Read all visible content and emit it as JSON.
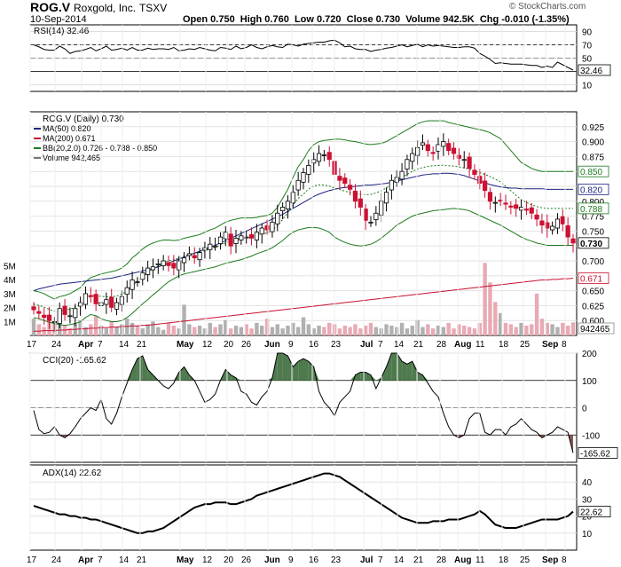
{
  "header": {
    "symbol": "ROG.V",
    "company": "Roxgold, Inc.",
    "exchange": "TSXV",
    "date": "10-Sep-2014",
    "quote": "Open 0.750  High 0.760  Low 0.720  Close 0.730  Volume 942.5K  Chg -0.010 (-1.35%)",
    "watermark": "© StockCharts.com"
  },
  "colors": {
    "up": "#000000",
    "down": "#cc1133",
    "ma50": "#1a237e",
    "ma200": "#c8102e",
    "bb": "#1b7a1b",
    "cci_fill": "#4e7a4e",
    "cci_fill_neg": "#8a5a54",
    "vol_up": "#b0b0b0",
    "vol_down": "#e8aab4"
  },
  "x_labels": [
    "17",
    "24",
    "Apr",
    "7",
    "14",
    "21",
    "May",
    "12",
    "20",
    "26",
    "Jun",
    "9",
    "16",
    "23",
    "Jul",
    "7",
    "14",
    "21",
    "28",
    "Aug",
    "11",
    "18",
    "25",
    "Sep",
    "8"
  ],
  "chart_data": [
    {
      "type": "line",
      "title": "RSI(14) 32.46",
      "ylim": [
        0,
        100
      ],
      "y_ticks": [
        10,
        30,
        50,
        70,
        90
      ],
      "last_label": "32.46",
      "values": [
        70,
        67,
        63,
        62,
        62,
        68,
        64,
        57,
        60,
        61,
        63,
        66,
        61,
        64,
        68,
        62,
        63,
        65,
        62,
        66,
        62,
        62,
        65,
        63,
        64,
        64,
        63,
        66,
        61,
        62,
        64,
        63,
        66,
        64,
        62,
        61,
        66,
        65,
        63,
        68,
        64,
        66,
        70,
        66,
        64,
        67,
        69,
        67,
        66,
        71,
        70,
        68,
        71,
        72,
        73,
        74,
        74,
        76,
        77,
        73,
        67,
        68,
        64,
        63,
        63,
        60,
        62,
        63,
        65,
        66,
        68,
        70,
        67,
        69,
        71,
        67,
        70,
        68,
        69,
        68,
        67,
        66,
        66,
        67,
        67,
        65,
        57,
        53,
        48,
        42,
        43,
        42,
        41,
        41,
        41,
        40,
        39,
        39,
        36,
        38,
        36,
        44,
        40,
        36,
        32
      ]
    },
    {
      "type": "candlestick",
      "title": "ROG.V (Daily) 0.730",
      "legend": [
        "MA(50) 0.820",
        "MA(200) 0.671",
        "BB(20,2.0) 0.726 - 0.788 - 0.850",
        "Volume 942,465"
      ],
      "ylim": [
        0.575,
        0.95
      ],
      "price_ticks": [
        0.6,
        0.625,
        0.65,
        0.675,
        0.7,
        0.725,
        0.75,
        0.775,
        0.8,
        0.825,
        0.85,
        0.875,
        0.9,
        0.925
      ],
      "price_tick_labels": [
        "0.600",
        "0.625",
        "0.650",
        "",
        "0.700",
        "",
        "0.750",
        "0.775",
        "0.800",
        "",
        "0.850",
        "0.875",
        "0.900",
        "0.925"
      ],
      "volume_ticks": [
        "1M",
        "2M",
        "3M",
        "4M",
        "5M"
      ],
      "price_flags": [
        {
          "value": 0.85,
          "label": "0.850",
          "color": "#1b7a1b"
        },
        {
          "value": 0.82,
          "label": "0.820",
          "color": "#1a237e"
        },
        {
          "value": 0.788,
          "label": "0.788",
          "color": "#1b7a1b"
        },
        {
          "value": 0.73,
          "label": "0.730",
          "color": "#000000"
        },
        {
          "value": 0.671,
          "label": "0.671",
          "color": "#c8102e"
        }
      ],
      "volume_flag": "942465",
      "close": [
        0.618,
        0.612,
        0.605,
        0.6,
        0.598,
        0.62,
        0.61,
        0.608,
        0.62,
        0.63,
        0.645,
        0.64,
        0.628,
        0.63,
        0.635,
        0.622,
        0.63,
        0.64,
        0.655,
        0.668,
        0.665,
        0.68,
        0.688,
        0.69,
        0.695,
        0.7,
        0.692,
        0.688,
        0.7,
        0.705,
        0.712,
        0.705,
        0.714,
        0.722,
        0.728,
        0.725,
        0.74,
        0.748,
        0.725,
        0.738,
        0.742,
        0.74,
        0.738,
        0.748,
        0.755,
        0.752,
        0.765,
        0.78,
        0.79,
        0.8,
        0.815,
        0.835,
        0.848,
        0.86,
        0.87,
        0.88,
        0.878,
        0.87,
        0.845,
        0.835,
        0.83,
        0.82,
        0.8,
        0.79,
        0.768,
        0.765,
        0.78,
        0.8,
        0.815,
        0.835,
        0.84,
        0.85,
        0.87,
        0.88,
        0.89,
        0.898,
        0.885,
        0.88,
        0.895,
        0.9,
        0.885,
        0.88,
        0.872,
        0.87,
        0.855,
        0.845,
        0.83,
        0.818,
        0.8,
        0.798,
        0.8,
        0.795,
        0.79,
        0.788,
        0.79,
        0.785,
        0.78,
        0.77,
        0.76,
        0.755,
        0.758,
        0.77,
        0.762,
        0.74,
        0.73
      ],
      "ma50": [
        0.65,
        0.653,
        0.655,
        0.657,
        0.659,
        0.661,
        0.662,
        0.663,
        0.664,
        0.665,
        0.666,
        0.667,
        0.668,
        0.669,
        0.67,
        0.671,
        0.673,
        0.675,
        0.677,
        0.679,
        0.681,
        0.683,
        0.685,
        0.687,
        0.69,
        0.693,
        0.696,
        0.7,
        0.703,
        0.706,
        0.71,
        0.713,
        0.716,
        0.72,
        0.723,
        0.726,
        0.73,
        0.734,
        0.738,
        0.742,
        0.746,
        0.75,
        0.754,
        0.758,
        0.762,
        0.766,
        0.77,
        0.774,
        0.778,
        0.783,
        0.788,
        0.793,
        0.798,
        0.803,
        0.808,
        0.812,
        0.815,
        0.818,
        0.82,
        0.822,
        0.823,
        0.824,
        0.825,
        0.826,
        0.827,
        0.827,
        0.828,
        0.829,
        0.83,
        0.832,
        0.834,
        0.836,
        0.838,
        0.84,
        0.842,
        0.844,
        0.845,
        0.846,
        0.846,
        0.847,
        0.847,
        0.846,
        0.845,
        0.843,
        0.84,
        0.837,
        0.834,
        0.831,
        0.828,
        0.826,
        0.824,
        0.823,
        0.822,
        0.822,
        0.821,
        0.821,
        0.821,
        0.821,
        0.821,
        0.82,
        0.82,
        0.82,
        0.82,
        0.82,
        0.82
      ],
      "ma200": [
        0.582,
        0.582,
        0.583,
        0.583,
        0.583,
        0.584,
        0.584,
        0.585,
        0.585,
        0.586,
        0.586,
        0.587,
        0.587,
        0.588,
        0.588,
        0.589,
        0.589,
        0.59,
        0.59,
        0.591,
        0.591,
        0.592,
        0.592,
        0.593,
        0.594,
        0.595,
        0.596,
        0.597,
        0.598,
        0.599,
        0.6,
        0.601,
        0.602,
        0.603,
        0.604,
        0.605,
        0.606,
        0.607,
        0.608,
        0.609,
        0.61,
        0.611,
        0.612,
        0.613,
        0.614,
        0.615,
        0.616,
        0.617,
        0.618,
        0.619,
        0.62,
        0.621,
        0.622,
        0.623,
        0.624,
        0.625,
        0.626,
        0.627,
        0.628,
        0.629,
        0.63,
        0.631,
        0.632,
        0.633,
        0.634,
        0.635,
        0.636,
        0.637,
        0.638,
        0.639,
        0.64,
        0.641,
        0.642,
        0.643,
        0.644,
        0.645,
        0.646,
        0.647,
        0.648,
        0.649,
        0.65,
        0.651,
        0.652,
        0.653,
        0.654,
        0.655,
        0.656,
        0.657,
        0.658,
        0.659,
        0.66,
        0.661,
        0.662,
        0.663,
        0.664,
        0.665,
        0.666,
        0.667,
        0.668,
        0.668,
        0.669,
        0.669,
        0.67,
        0.67,
        0.671
      ],
      "bb_upper": [
        0.65,
        0.648,
        0.645,
        0.64,
        0.636,
        0.64,
        0.642,
        0.645,
        0.65,
        0.655,
        0.665,
        0.672,
        0.675,
        0.678,
        0.68,
        0.682,
        0.684,
        0.688,
        0.695,
        0.705,
        0.712,
        0.72,
        0.726,
        0.73,
        0.733,
        0.735,
        0.735,
        0.734,
        0.735,
        0.738,
        0.74,
        0.742,
        0.744,
        0.748,
        0.752,
        0.755,
        0.76,
        0.765,
        0.768,
        0.77,
        0.772,
        0.772,
        0.772,
        0.773,
        0.775,
        0.776,
        0.78,
        0.79,
        0.805,
        0.82,
        0.84,
        0.858,
        0.87,
        0.885,
        0.895,
        0.9,
        0.902,
        0.903,
        0.904,
        0.904,
        0.903,
        0.901,
        0.9,
        0.898,
        0.896,
        0.895,
        0.896,
        0.897,
        0.9,
        0.905,
        0.91,
        0.915,
        0.92,
        0.925,
        0.93,
        0.933,
        0.935,
        0.935,
        0.935,
        0.935,
        0.932,
        0.93,
        0.928,
        0.926,
        0.924,
        0.922,
        0.92,
        0.918,
        0.915,
        0.91,
        0.905,
        0.895,
        0.885,
        0.875,
        0.865,
        0.86,
        0.855,
        0.852,
        0.85,
        0.85,
        0.85,
        0.85,
        0.85,
        0.85,
        0.85
      ],
      "bb_lower": [
        0.605,
        0.603,
        0.6,
        0.597,
        0.595,
        0.593,
        0.592,
        0.593,
        0.595,
        0.598,
        0.605,
        0.61,
        0.608,
        0.603,
        0.6,
        0.598,
        0.598,
        0.6,
        0.605,
        0.612,
        0.62,
        0.628,
        0.635,
        0.643,
        0.65,
        0.658,
        0.665,
        0.67,
        0.675,
        0.678,
        0.68,
        0.682,
        0.684,
        0.686,
        0.688,
        0.69,
        0.693,
        0.696,
        0.698,
        0.7,
        0.702,
        0.705,
        0.708,
        0.712,
        0.715,
        0.718,
        0.722,
        0.728,
        0.734,
        0.742,
        0.748,
        0.752,
        0.754,
        0.756,
        0.756,
        0.755,
        0.752,
        0.748,
        0.74,
        0.735,
        0.731,
        0.728,
        0.726,
        0.725,
        0.726,
        0.728,
        0.732,
        0.738,
        0.745,
        0.752,
        0.76,
        0.765,
        0.77,
        0.775,
        0.778,
        0.78,
        0.782,
        0.784,
        0.785,
        0.786,
        0.787,
        0.788,
        0.787,
        0.786,
        0.784,
        0.78,
        0.776,
        0.772,
        0.768,
        0.764,
        0.76,
        0.755,
        0.75,
        0.745,
        0.74,
        0.736,
        0.733,
        0.73,
        0.728,
        0.726,
        0.726,
        0.726,
        0.726,
        0.726,
        0.726
      ],
      "volume_millions": [
        1.2,
        0.8,
        0.6,
        1.5,
        0.9,
        1.8,
        0.7,
        0.5,
        0.9,
        1.1,
        0.6,
        0.8,
        1.4,
        0.7,
        0.5,
        1.0,
        0.6,
        0.8,
        1.2,
        0.9,
        0.7,
        0.5,
        0.8,
        1.0,
        0.6,
        0.4,
        0.9,
        0.7,
        0.5,
        2.2,
        0.8,
        0.6,
        0.7,
        0.5,
        0.9,
        0.6,
        0.8,
        1.1,
        0.5,
        0.7,
        0.6,
        0.8,
        0.5,
        0.9,
        0.7,
        1.2,
        0.6,
        0.8,
        0.5,
        0.7,
        0.9,
        0.6,
        1.3,
        0.8,
        0.5,
        0.7,
        0.6,
        0.9,
        0.8,
        0.5,
        0.7,
        0.6,
        0.8,
        0.5,
        0.7,
        0.9,
        0.6,
        0.5,
        0.8,
        0.7,
        0.6,
        0.9,
        0.5,
        0.7,
        1.1,
        0.6,
        0.8,
        0.5,
        0.7,
        0.6,
        0.9,
        0.5,
        0.8,
        0.7,
        0.6,
        0.5,
        0.9,
        5.2,
        3.8,
        2.4,
        1.6,
        0.9,
        0.8,
        0.6,
        0.9,
        0.7,
        0.8,
        3.0,
        1.2,
        0.9,
        0.8,
        0.6,
        0.9,
        0.7,
        0.94
      ]
    },
    {
      "type": "line",
      "title": "CCI(20) -165.62",
      "ylim": [
        -200,
        200
      ],
      "y_ticks": [
        -100,
        0,
        100,
        200
      ],
      "last_label": "-165.62",
      "values": [
        -10,
        -80,
        -95,
        -90,
        -70,
        -100,
        -110,
        -95,
        -70,
        -40,
        -20,
        0,
        -10,
        30,
        -40,
        -60,
        -20,
        40,
        90,
        140,
        180,
        190,
        140,
        120,
        100,
        80,
        70,
        90,
        130,
        150,
        120,
        100,
        60,
        20,
        30,
        50,
        100,
        140,
        120,
        110,
        60,
        50,
        20,
        10,
        40,
        60,
        110,
        250,
        240,
        190,
        150,
        170,
        180,
        170,
        150,
        60,
        20,
        0,
        -30,
        20,
        40,
        60,
        120,
        130,
        130,
        120,
        70,
        110,
        150,
        240,
        200,
        170,
        160,
        170,
        130,
        120,
        90,
        60,
        40,
        -20,
        -70,
        -100,
        -110,
        -100,
        -40,
        -20,
        -20,
        -90,
        -100,
        -80,
        -80,
        -100,
        -70,
        -60,
        -40,
        -60,
        -80,
        -90,
        -110,
        -100,
        -90,
        -70,
        -80,
        -90,
        -165.62
      ]
    },
    {
      "type": "line",
      "title": "ADX(14) 22.62",
      "ylim": [
        0,
        50
      ],
      "y_ticks": [
        10,
        20,
        30,
        40
      ],
      "last_label": "22.62",
      "values": [
        26,
        25,
        24,
        23,
        22,
        21,
        21,
        20,
        20,
        19,
        19,
        18,
        18,
        17,
        16,
        15,
        14,
        13,
        12,
        11,
        10,
        10,
        11,
        11,
        12,
        13,
        15,
        17,
        19,
        21,
        23,
        25,
        26,
        27,
        27,
        28,
        28,
        28,
        27,
        27,
        28,
        29,
        30,
        32,
        33,
        34,
        35,
        36,
        37,
        38,
        39,
        40,
        41,
        42,
        43,
        44,
        45,
        45,
        44,
        43,
        41,
        39,
        37,
        35,
        33,
        31,
        29,
        27,
        25,
        23,
        21,
        19,
        18,
        17,
        16,
        16,
        16,
        17,
        17,
        17,
        18,
        18,
        18,
        19,
        20,
        21,
        23,
        21,
        18,
        15,
        14,
        13,
        13,
        13,
        14,
        15,
        16,
        17,
        18,
        18,
        18,
        18,
        19,
        20,
        22.62
      ]
    }
  ]
}
